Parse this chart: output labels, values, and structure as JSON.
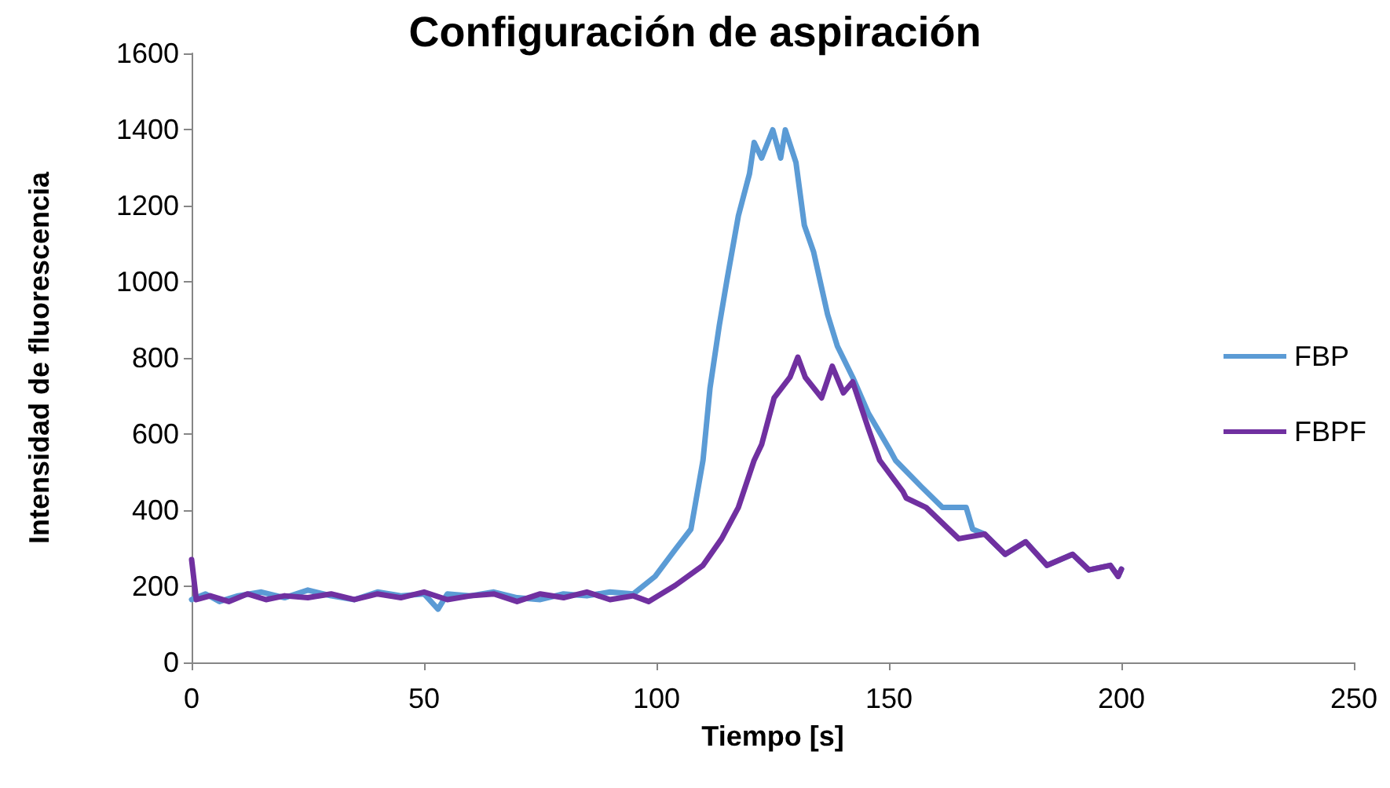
{
  "chart_data": {
    "type": "line",
    "title": "Configuración de aspiración",
    "xlabel": "Tiempo [s]",
    "ylabel": "Intensidad de fluorescencia",
    "xlim": [
      0,
      250
    ],
    "xticks": [
      0,
      50,
      100,
      150,
      200,
      250
    ],
    "ylim": [
      0,
      1600
    ],
    "yticks": [
      0,
      200,
      400,
      600,
      800,
      1000,
      1200,
      1400,
      1600
    ],
    "grid": false,
    "legend": "right",
    "marker": "none",
    "line_style": "solid",
    "series": [
      {
        "name": "FBP",
        "color": "#5b9bd5",
        "x": [
          0,
          3,
          6,
          10,
          15,
          20,
          25,
          30,
          35,
          40,
          45,
          50,
          53,
          55,
          60,
          65,
          70,
          75,
          80,
          85,
          90,
          95,
          99.7,
          104,
          107.4,
          110,
          111.5,
          113.5,
          115.2,
          117.6,
          120,
          121,
          122.6,
          125,
          126.7,
          127.7,
          130,
          131.8,
          133.8,
          136.8,
          138.9,
          142.2,
          145.6,
          150.3,
          151.4,
          157,
          161.5,
          166.6,
          168,
          170.6,
          175,
          179.4,
          184,
          189.5,
          193,
          197.6,
          199.3,
          200
        ],
        "values": [
          165,
          180,
          160,
          175,
          185,
          170,
          190,
          175,
          165,
          185,
          175,
          180,
          140,
          180,
          175,
          185,
          170,
          165,
          180,
          175,
          185,
          180,
          226,
          296,
          350,
          531,
          720,
          885,
          1008,
          1173,
          1284,
          1366,
          1325,
          1399,
          1325,
          1399,
          1313,
          1148,
          1078,
          914,
          831,
          749,
          654,
          556,
          531,
          461,
          407,
          407,
          350,
          337,
          284,
          317,
          255,
          284,
          243,
          255,
          226,
          245
        ]
      },
      {
        "name": "FBPF",
        "color": "#7030a0",
        "x": [
          0,
          1,
          4,
          8,
          12,
          16,
          20,
          25,
          30,
          35,
          40,
          45,
          50,
          55,
          60,
          65,
          70,
          75,
          80,
          85,
          90,
          95,
          98.3,
          104,
          110,
          114,
          117.6,
          121,
          122.6,
          125.3,
          128.7,
          130.4,
          132,
          135.5,
          137.8,
          140.2,
          142.2,
          145.6,
          148,
          153,
          153.7,
          158,
          165,
          170.6,
          175,
          179.4,
          184,
          189.5,
          193,
          197.6,
          199.3,
          200
        ],
        "values": [
          270,
          165,
          175,
          160,
          180,
          165,
          175,
          170,
          180,
          165,
          180,
          170,
          185,
          165,
          175,
          180,
          160,
          180,
          170,
          185,
          165,
          175,
          160,
          202,
          255,
          325,
          407,
          531,
          572,
          695,
          749,
          802,
          749,
          695,
          778,
          708,
          737,
          613,
          531,
          449,
          432,
          407,
          325,
          337,
          284,
          317,
          255,
          284,
          243,
          255,
          226,
          245
        ]
      }
    ]
  }
}
